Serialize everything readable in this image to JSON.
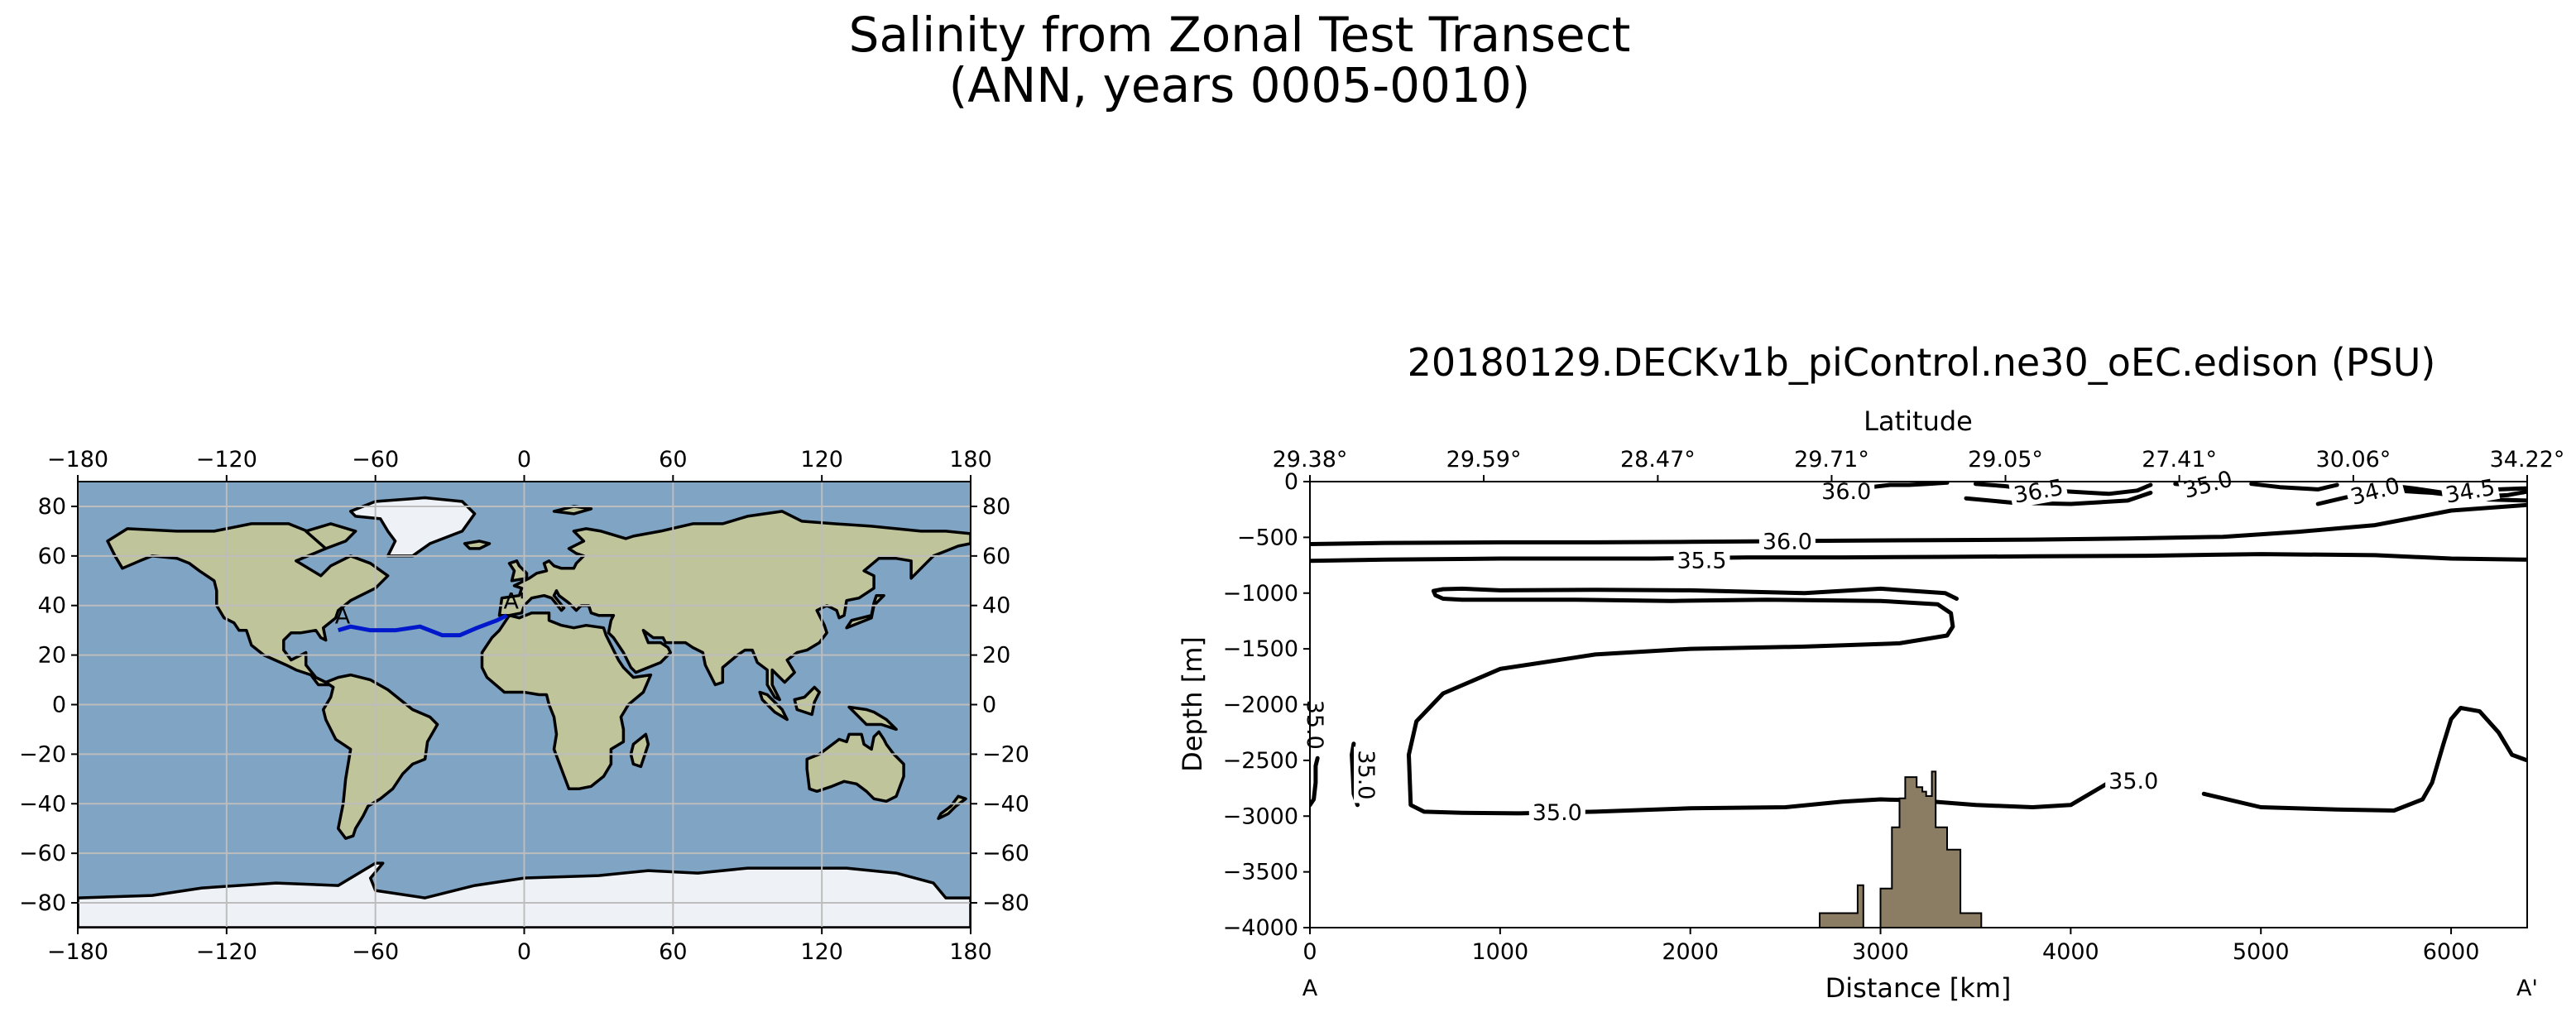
{
  "figure": {
    "title_line1": "Salinity from Zonal Test Transect",
    "title_line2": "(ANN, years 0005-0010)"
  },
  "colors": {
    "ocean": "#7fa4c4",
    "land": "#bfc49a",
    "ice": "#eef2f6",
    "transect": "#0018cc",
    "seafloor": "#8b7d64",
    "contour": "#000000"
  },
  "chart_data": [
    {
      "type": "map",
      "projection": "PlateCarree",
      "basemap": "stock image with coastlines",
      "grid": true,
      "xticks": [
        -180,
        -120,
        -60,
        0,
        60,
        120,
        180
      ],
      "yticks": [
        80,
        60,
        40,
        20,
        0,
        -20,
        -40,
        -60,
        -80
      ],
      "xlim": [
        -180,
        180
      ],
      "ylim": [
        -90,
        90
      ],
      "transect": {
        "start_label": "A",
        "end_label": "A'",
        "points": [
          [
            -75,
            30
          ],
          [
            -70,
            31.5
          ],
          [
            -62,
            30
          ],
          [
            -52,
            30
          ],
          [
            -42,
            31.5
          ],
          [
            -33,
            28
          ],
          [
            -26,
            28
          ],
          [
            -19,
            31
          ],
          [
            -11,
            34
          ],
          [
            -7,
            36
          ]
        ]
      }
    },
    {
      "type": "contour",
      "title": "20180129.DECKv1b_piControl.ne30_oEC.edison (PSU)",
      "xlabel": "Distance [km]",
      "ylabel": "Depth [m]",
      "top_axis_label": "Latitude",
      "xlim": [
        0,
        6400
      ],
      "ylim": [
        -4000,
        0
      ],
      "xticks": [
        0,
        1000,
        2000,
        3000,
        4000,
        5000,
        6000
      ],
      "yticks": [
        0,
        -500,
        -1000,
        -1500,
        -2000,
        -2500,
        -3000,
        -3500,
        -4000
      ],
      "top_ticks": [
        {
          "x": 0,
          "label": "29.38°"
        },
        {
          "x": 914,
          "label": "29.59°"
        },
        {
          "x": 1829,
          "label": "28.47°"
        },
        {
          "x": 2743,
          "label": "29.71°"
        },
        {
          "x": 3657,
          "label": "29.05°"
        },
        {
          "x": 4571,
          "label": "27.41°"
        },
        {
          "x": 5486,
          "label": "30.06°"
        },
        {
          "x": 6400,
          "label": "34.22°"
        }
      ],
      "end_labels": {
        "left": "A",
        "right": "A'"
      },
      "contour_levels": [
        "34.0",
        "34.5",
        "35.0",
        "35.5",
        "36.0",
        "36.5"
      ],
      "contour_labels": [
        {
          "x": 1300,
          "y": -2960,
          "label": "35.0",
          "angle": 0
        },
        {
          "x": 4330,
          "y": -2680,
          "label": "35.0",
          "angle": 0
        },
        {
          "x": 300,
          "y": -2630,
          "label": "35.0",
          "angle": 90
        },
        {
          "x": 30,
          "y": -2180,
          "label": "35.0",
          "angle": 90
        },
        {
          "x": 2060,
          "y": -700,
          "label": "35.5",
          "angle": 0
        },
        {
          "x": 2510,
          "y": -530,
          "label": "36.0",
          "angle": 0
        },
        {
          "x": 2820,
          "y": -80,
          "label": "36.0",
          "angle": 0
        },
        {
          "x": 3830,
          "y": -80,
          "label": "36.5",
          "angle": -10
        },
        {
          "x": 4720,
          "y": -20,
          "label": "35.0",
          "angle": -15
        },
        {
          "x": 5600,
          "y": -80,
          "label": "34.0",
          "angle": -15
        },
        {
          "x": 6100,
          "y": -80,
          "label": "34.5",
          "angle": -10
        }
      ],
      "contours": [
        {
          "level": "35.0",
          "points": [
            [
              0,
              -2900
            ],
            [
              20,
              -2850
            ],
            [
              30,
              -2700
            ],
            [
              30,
              -2550
            ],
            [
              40,
              -2480
            ]
          ]
        },
        {
          "level": "35.0",
          "points": [
            [
              230,
              -2350
            ],
            [
              220,
              -2450
            ],
            [
              225,
              -2600
            ],
            [
              230,
              -2800
            ],
            [
              250,
              -2900
            ]
          ]
        },
        {
          "level": "35.0",
          "points": [
            [
              3400,
              -1050
            ],
            [
              3340,
              -1000
            ],
            [
              3000,
              -960
            ],
            [
              2600,
              -1000
            ],
            [
              2000,
              -975
            ],
            [
              1500,
              -970
            ],
            [
              1000,
              -975
            ],
            [
              800,
              -960
            ],
            [
              700,
              -965
            ],
            [
              650,
              -980
            ],
            [
              660,
              -1020
            ],
            [
              700,
              -1050
            ],
            [
              800,
              -1060
            ],
            [
              1000,
              -1060
            ],
            [
              1400,
              -1060
            ],
            [
              1900,
              -1070
            ],
            [
              2400,
              -1060
            ],
            [
              3000,
              -1070
            ],
            [
              3300,
              -1100
            ],
            [
              3370,
              -1180
            ],
            [
              3380,
              -1300
            ],
            [
              3350,
              -1380
            ],
            [
              3100,
              -1450
            ],
            [
              2600,
              -1480
            ],
            [
              2000,
              -1500
            ],
            [
              1500,
              -1550
            ],
            [
              1000,
              -1680
            ],
            [
              700,
              -1900
            ],
            [
              560,
              -2150
            ],
            [
              520,
              -2450
            ],
            [
              530,
              -2900
            ],
            [
              600,
              -2960
            ],
            [
              800,
              -2970
            ],
            [
              1100,
              -2975
            ],
            [
              1500,
              -2960
            ],
            [
              2000,
              -2930
            ],
            [
              2500,
              -2920
            ],
            [
              2800,
              -2870
            ],
            [
              3000,
              -2850
            ],
            [
              3200,
              -2860
            ],
            [
              3500,
              -2900
            ],
            [
              3800,
              -2920
            ],
            [
              4000,
              -2900
            ],
            [
              4200,
              -2700
            ]
          ]
        },
        {
          "level": "35.0",
          "points": [
            [
              4700,
              -2800
            ],
            [
              5000,
              -2920
            ],
            [
              5400,
              -2940
            ],
            [
              5700,
              -2950
            ],
            [
              5850,
              -2850
            ],
            [
              5900,
              -2700
            ],
            [
              5960,
              -2350
            ],
            [
              6000,
              -2130
            ],
            [
              6050,
              -2030
            ],
            [
              6150,
              -2060
            ],
            [
              6250,
              -2250
            ],
            [
              6320,
              -2450
            ],
            [
              6400,
              -2500
            ]
          ]
        },
        {
          "level": "35.5",
          "points": [
            [
              0,
              -710
            ],
            [
              400,
              -700
            ],
            [
              1000,
              -690
            ],
            [
              1800,
              -690
            ],
            [
              2300,
              -680
            ],
            [
              2800,
              -680
            ],
            [
              3300,
              -675
            ],
            [
              3800,
              -670
            ],
            [
              4400,
              -665
            ],
            [
              5000,
              -650
            ],
            [
              5600,
              -660
            ],
            [
              6000,
              -690
            ],
            [
              6400,
              -700
            ]
          ]
        },
        {
          "level": "36.0",
          "points": [
            [
              0,
              -560
            ],
            [
              400,
              -550
            ],
            [
              1000,
              -545
            ],
            [
              1500,
              -545
            ],
            [
              2000,
              -540
            ],
            [
              2400,
              -535
            ],
            [
              2800,
              -530
            ],
            [
              3300,
              -525
            ],
            [
              3800,
              -520
            ],
            [
              4300,
              -510
            ],
            [
              4800,
              -495
            ],
            [
              5200,
              -450
            ],
            [
              5600,
              -390
            ],
            [
              6000,
              -260
            ],
            [
              6400,
              -210
            ]
          ]
        },
        {
          "level": "36.0",
          "points": [
            [
              2700,
              -10
            ],
            [
              2800,
              -60
            ],
            [
              2950,
              -50
            ],
            [
              3050,
              -30
            ],
            [
              3150,
              -30
            ],
            [
              3250,
              -20
            ],
            [
              3350,
              -10
            ]
          ]
        },
        {
          "level": "36.5",
          "points": [
            [
              3500,
              -20
            ],
            [
              3650,
              -40
            ],
            [
              3800,
              -70
            ],
            [
              4000,
              -90
            ],
            [
              4200,
              -110
            ],
            [
              4350,
              -80
            ],
            [
              4420,
              -30
            ]
          ]
        },
        {
          "level": "36.5",
          "points": [
            [
              3450,
              -150
            ],
            [
              3700,
              -190
            ],
            [
              4000,
              -200
            ],
            [
              4300,
              -170
            ],
            [
              4420,
              -100
            ]
          ]
        },
        {
          "level": "35.0",
          "points": [
            [
              4550,
              -20
            ],
            [
              4700,
              -40
            ],
            [
              4850,
              -40
            ]
          ]
        },
        {
          "level": "35.5",
          "points": [
            [
              4950,
              -20
            ],
            [
              5100,
              -50
            ],
            [
              5300,
              -70
            ],
            [
              5400,
              -30
            ]
          ]
        },
        {
          "level": "34.0",
          "points": [
            [
              5300,
              -200
            ],
            [
              5500,
              -120
            ],
            [
              5700,
              -80
            ],
            [
              5900,
              -100
            ],
            [
              6100,
              -140
            ],
            [
              6300,
              -120
            ],
            [
              6400,
              -90
            ]
          ]
        },
        {
          "level": "34.5",
          "points": [
            [
              5600,
              -20
            ],
            [
              5800,
              -60
            ],
            [
              6000,
              -110
            ],
            [
              6200,
              -160
            ],
            [
              6400,
              -170
            ]
          ]
        },
        {
          "level": "34.5",
          "points": [
            [
              6100,
              -40
            ],
            [
              6250,
              -70
            ],
            [
              6400,
              -60
            ]
          ]
        }
      ],
      "seafloor": [
        [
          2680,
          -4000
        ],
        [
          2680,
          -3870
        ],
        [
          2880,
          -3870
        ],
        [
          2880,
          -3620
        ],
        [
          2910,
          -3620
        ],
        [
          2910,
          -4000
        ],
        [
          3000,
          -4000
        ],
        [
          3000,
          -3650
        ],
        [
          3060,
          -3650
        ],
        [
          3060,
          -3100
        ],
        [
          3100,
          -3100
        ],
        [
          3100,
          -2840
        ],
        [
          3130,
          -2840
        ],
        [
          3130,
          -2650
        ],
        [
          3190,
          -2650
        ],
        [
          3190,
          -2740
        ],
        [
          3220,
          -2740
        ],
        [
          3220,
          -2780
        ],
        [
          3240,
          -2780
        ],
        [
          3240,
          -2820
        ],
        [
          3270,
          -2820
        ],
        [
          3270,
          -2600
        ],
        [
          3290,
          -2600
        ],
        [
          3290,
          -3100
        ],
        [
          3350,
          -3100
        ],
        [
          3350,
          -3300
        ],
        [
          3420,
          -3300
        ],
        [
          3420,
          -3870
        ],
        [
          3530,
          -3870
        ],
        [
          3530,
          -4000
        ]
      ]
    }
  ]
}
